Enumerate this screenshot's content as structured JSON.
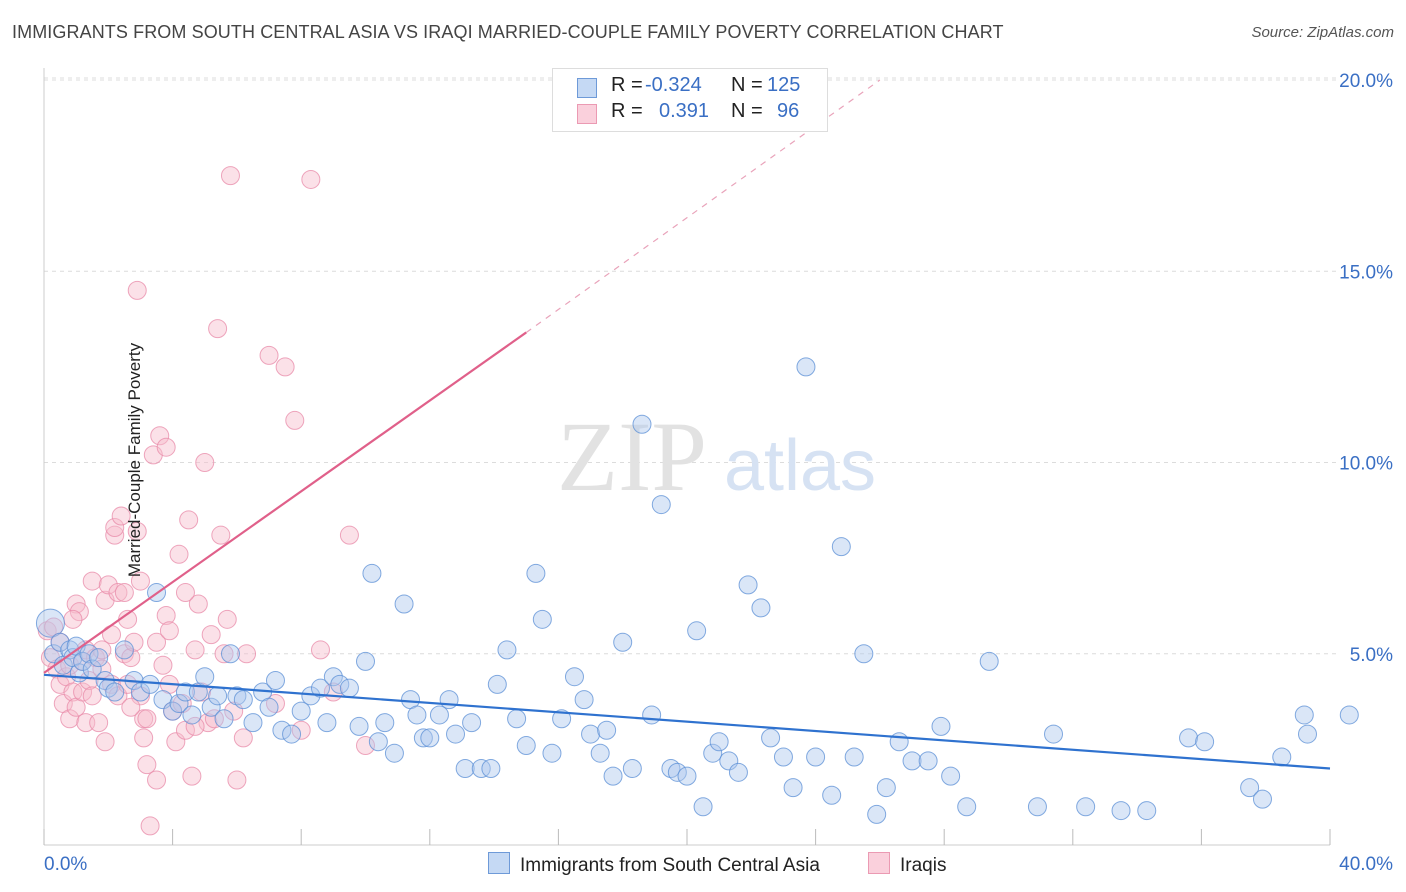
{
  "title": "IMMIGRANTS FROM SOUTH CENTRAL ASIA VS IRAQI MARRIED-COUPLE FAMILY POVERTY CORRELATION CHART",
  "source": "Source: ZipAtlas.com",
  "watermark": {
    "zip": "ZIP",
    "atlas": "atlas"
  },
  "legend": {
    "r_label": "R =",
    "n_label": "N =",
    "series1": {
      "r": "-0.324",
      "n": "125"
    },
    "series2": {
      "r": "0.391",
      "n": "96"
    }
  },
  "bottom_legend": {
    "series1": "Immigrants from South Central Asia",
    "series2": "Iraqis"
  },
  "colors": {
    "blue": "#5b8fd6",
    "blue_fill": "#aec8ee",
    "blue_line": "#2f72cf",
    "pink": "#e889a8",
    "pink_fill": "#f6bccd",
    "pink_line": "#e0608a",
    "axis_text": "#3a6fc4",
    "grid": "#dcdcdc"
  },
  "chart_data": {
    "type": "scatter",
    "xlabel": "",
    "ylabel": "Married-Couple Family Poverty",
    "xlim": [
      0,
      40
    ],
    "ylim": [
      0,
      20
    ],
    "x_tick_labels": [
      "0.0%",
      "40.0%"
    ],
    "y_ticks": [
      5,
      10,
      15,
      20
    ],
    "y_tick_labels": [
      "5.0%",
      "10.0%",
      "15.0%",
      "20.0%"
    ],
    "series": [
      {
        "name": "Immigrants from South Central Asia",
        "trend": {
          "x0": 0,
          "y0": 4.45,
          "x1": 40,
          "y1": 2.0
        },
        "points": [
          [
            0.2,
            5.8
          ],
          [
            0.3,
            5.0
          ],
          [
            0.5,
            5.3
          ],
          [
            0.6,
            4.7
          ],
          [
            0.8,
            5.1
          ],
          [
            0.9,
            4.9
          ],
          [
            1.0,
            5.2
          ],
          [
            1.1,
            4.5
          ],
          [
            1.2,
            4.8
          ],
          [
            1.4,
            5.0
          ],
          [
            1.5,
            4.6
          ],
          [
            1.7,
            4.9
          ],
          [
            1.9,
            4.3
          ],
          [
            2.0,
            4.1
          ],
          [
            2.2,
            4.0
          ],
          [
            2.5,
            5.1
          ],
          [
            2.8,
            4.3
          ],
          [
            3.0,
            4.0
          ],
          [
            3.3,
            4.2
          ],
          [
            3.5,
            6.6
          ],
          [
            3.7,
            3.8
          ],
          [
            4.0,
            3.5
          ],
          [
            4.2,
            3.7
          ],
          [
            4.4,
            4.0
          ],
          [
            4.6,
            3.4
          ],
          [
            4.8,
            4.0
          ],
          [
            5.0,
            4.4
          ],
          [
            5.2,
            3.6
          ],
          [
            5.4,
            3.9
          ],
          [
            5.6,
            3.3
          ],
          [
            5.8,
            5.0
          ],
          [
            6.0,
            3.9
          ],
          [
            6.2,
            3.8
          ],
          [
            6.5,
            3.2
          ],
          [
            6.8,
            4.0
          ],
          [
            7.0,
            3.6
          ],
          [
            7.2,
            4.3
          ],
          [
            7.4,
            3.0
          ],
          [
            7.7,
            2.9
          ],
          [
            8.0,
            3.5
          ],
          [
            8.3,
            3.9
          ],
          [
            8.6,
            4.1
          ],
          [
            8.8,
            3.2
          ],
          [
            9.0,
            4.4
          ],
          [
            9.2,
            4.2
          ],
          [
            9.5,
            4.1
          ],
          [
            9.8,
            3.1
          ],
          [
            10.0,
            4.8
          ],
          [
            10.2,
            7.1
          ],
          [
            10.4,
            2.7
          ],
          [
            10.6,
            3.2
          ],
          [
            10.9,
            2.4
          ],
          [
            11.2,
            6.3
          ],
          [
            11.4,
            3.8
          ],
          [
            11.6,
            3.4
          ],
          [
            11.8,
            2.8
          ],
          [
            12.0,
            2.8
          ],
          [
            12.3,
            3.4
          ],
          [
            12.6,
            3.8
          ],
          [
            12.8,
            2.9
          ],
          [
            13.1,
            2.0
          ],
          [
            13.3,
            3.2
          ],
          [
            13.6,
            2.0
          ],
          [
            13.9,
            2.0
          ],
          [
            14.1,
            4.2
          ],
          [
            14.4,
            5.1
          ],
          [
            14.7,
            3.3
          ],
          [
            15.0,
            2.6
          ],
          [
            15.3,
            7.1
          ],
          [
            15.5,
            5.9
          ],
          [
            15.8,
            2.4
          ],
          [
            16.1,
            3.3
          ],
          [
            16.5,
            4.4
          ],
          [
            16.8,
            3.8
          ],
          [
            17.0,
            2.9
          ],
          [
            17.3,
            2.4
          ],
          [
            17.5,
            3.0
          ],
          [
            17.7,
            1.8
          ],
          [
            18.0,
            5.3
          ],
          [
            18.3,
            2.0
          ],
          [
            18.6,
            11.0
          ],
          [
            18.9,
            3.4
          ],
          [
            19.2,
            8.9
          ],
          [
            19.5,
            2.0
          ],
          [
            19.7,
            1.9
          ],
          [
            20.0,
            1.8
          ],
          [
            20.3,
            5.6
          ],
          [
            20.5,
            1.0
          ],
          [
            20.8,
            2.4
          ],
          [
            21.0,
            2.7
          ],
          [
            21.3,
            2.2
          ],
          [
            21.6,
            1.9
          ],
          [
            21.9,
            6.8
          ],
          [
            22.3,
            6.2
          ],
          [
            22.6,
            2.8
          ],
          [
            23.0,
            2.3
          ],
          [
            23.3,
            1.5
          ],
          [
            23.7,
            12.5
          ],
          [
            24.0,
            2.3
          ],
          [
            24.5,
            1.3
          ],
          [
            24.8,
            7.8
          ],
          [
            25.2,
            2.3
          ],
          [
            25.5,
            5.0
          ],
          [
            25.9,
            0.8
          ],
          [
            26.2,
            1.5
          ],
          [
            26.6,
            2.7
          ],
          [
            27.0,
            2.2
          ],
          [
            27.5,
            2.2
          ],
          [
            27.9,
            3.1
          ],
          [
            28.2,
            1.8
          ],
          [
            28.7,
            1.0
          ],
          [
            29.4,
            4.8
          ],
          [
            30.9,
            1.0
          ],
          [
            31.4,
            2.9
          ],
          [
            32.4,
            1.0
          ],
          [
            33.5,
            0.9
          ],
          [
            34.3,
            0.9
          ],
          [
            35.6,
            2.8
          ],
          [
            36.1,
            2.7
          ],
          [
            37.5,
            1.5
          ],
          [
            37.9,
            1.2
          ],
          [
            38.5,
            2.3
          ],
          [
            39.2,
            3.4
          ],
          [
            39.3,
            2.9
          ],
          [
            40.6,
            3.4
          ]
        ]
      },
      {
        "name": "Iraqis",
        "trend": {
          "x0": 0,
          "y0": 4.5,
          "x1": 15,
          "y1": 13.4
        },
        "trend_dashed": {
          "x0": 15,
          "y0": 13.4,
          "x1": 26,
          "y1": 20.0
        },
        "points": [
          [
            0.1,
            5.6
          ],
          [
            0.2,
            4.9
          ],
          [
            0.3,
            5.7
          ],
          [
            0.4,
            4.6
          ],
          [
            0.5,
            4.2
          ],
          [
            0.5,
            5.3
          ],
          [
            0.6,
            3.7
          ],
          [
            0.7,
            4.4
          ],
          [
            0.8,
            4.7
          ],
          [
            0.8,
            3.3
          ],
          [
            0.9,
            4.0
          ],
          [
            1.0,
            6.3
          ],
          [
            1.0,
            3.6
          ],
          [
            1.1,
            6.1
          ],
          [
            1.2,
            4.8
          ],
          [
            1.2,
            4.0
          ],
          [
            1.3,
            3.2
          ],
          [
            1.3,
            5.1
          ],
          [
            1.4,
            4.3
          ],
          [
            1.5,
            6.9
          ],
          [
            1.5,
            3.9
          ],
          [
            1.6,
            4.9
          ],
          [
            1.7,
            3.2
          ],
          [
            1.8,
            5.1
          ],
          [
            1.8,
            4.6
          ],
          [
            1.9,
            6.4
          ],
          [
            2.0,
            6.8
          ],
          [
            2.1,
            4.2
          ],
          [
            2.1,
            5.5
          ],
          [
            2.2,
            8.1
          ],
          [
            2.2,
            8.3
          ],
          [
            2.3,
            3.9
          ],
          [
            2.3,
            6.6
          ],
          [
            2.4,
            8.6
          ],
          [
            2.5,
            5.0
          ],
          [
            2.5,
            6.6
          ],
          [
            2.6,
            4.2
          ],
          [
            2.6,
            5.9
          ],
          [
            2.7,
            4.9
          ],
          [
            2.8,
            5.3
          ],
          [
            2.9,
            14.5
          ],
          [
            2.9,
            8.2
          ],
          [
            3.0,
            6.9
          ],
          [
            3.0,
            3.9
          ],
          [
            3.1,
            2.8
          ],
          [
            3.1,
            3.3
          ],
          [
            3.2,
            3.3
          ],
          [
            3.2,
            2.1
          ],
          [
            3.3,
            0.5
          ],
          [
            3.4,
            10.2
          ],
          [
            3.5,
            5.3
          ],
          [
            3.5,
            1.7
          ],
          [
            3.6,
            10.7
          ],
          [
            3.7,
            4.7
          ],
          [
            3.8,
            10.4
          ],
          [
            3.8,
            6.0
          ],
          [
            3.9,
            4.2
          ],
          [
            4.0,
            3.5
          ],
          [
            4.1,
            2.7
          ],
          [
            4.2,
            7.6
          ],
          [
            4.3,
            3.7
          ],
          [
            4.4,
            3.0
          ],
          [
            4.5,
            8.5
          ],
          [
            4.6,
            1.8
          ],
          [
            4.7,
            5.1
          ],
          [
            4.8,
            6.3
          ],
          [
            4.9,
            4.0
          ],
          [
            5.0,
            10.0
          ],
          [
            5.1,
            3.2
          ],
          [
            5.2,
            5.5
          ],
          [
            5.3,
            3.3
          ],
          [
            5.4,
            13.5
          ],
          [
            5.5,
            8.1
          ],
          [
            5.6,
            5.0
          ],
          [
            5.7,
            5.9
          ],
          [
            5.8,
            17.5
          ],
          [
            5.9,
            3.5
          ],
          [
            6.0,
            1.7
          ],
          [
            6.2,
            2.8
          ],
          [
            6.3,
            5.0
          ],
          [
            7.0,
            12.8
          ],
          [
            7.2,
            3.7
          ],
          [
            7.5,
            12.5
          ],
          [
            7.8,
            11.1
          ],
          [
            8.0,
            3.0
          ],
          [
            8.3,
            17.4
          ],
          [
            8.6,
            5.1
          ],
          [
            9.0,
            4.0
          ],
          [
            9.5,
            8.1
          ],
          [
            10.0,
            2.6
          ],
          [
            4.7,
            3.1
          ],
          [
            3.9,
            5.6
          ],
          [
            2.7,
            3.6
          ],
          [
            1.9,
            2.7
          ],
          [
            0.9,
            5.9
          ],
          [
            4.4,
            6.6
          ]
        ]
      }
    ]
  }
}
